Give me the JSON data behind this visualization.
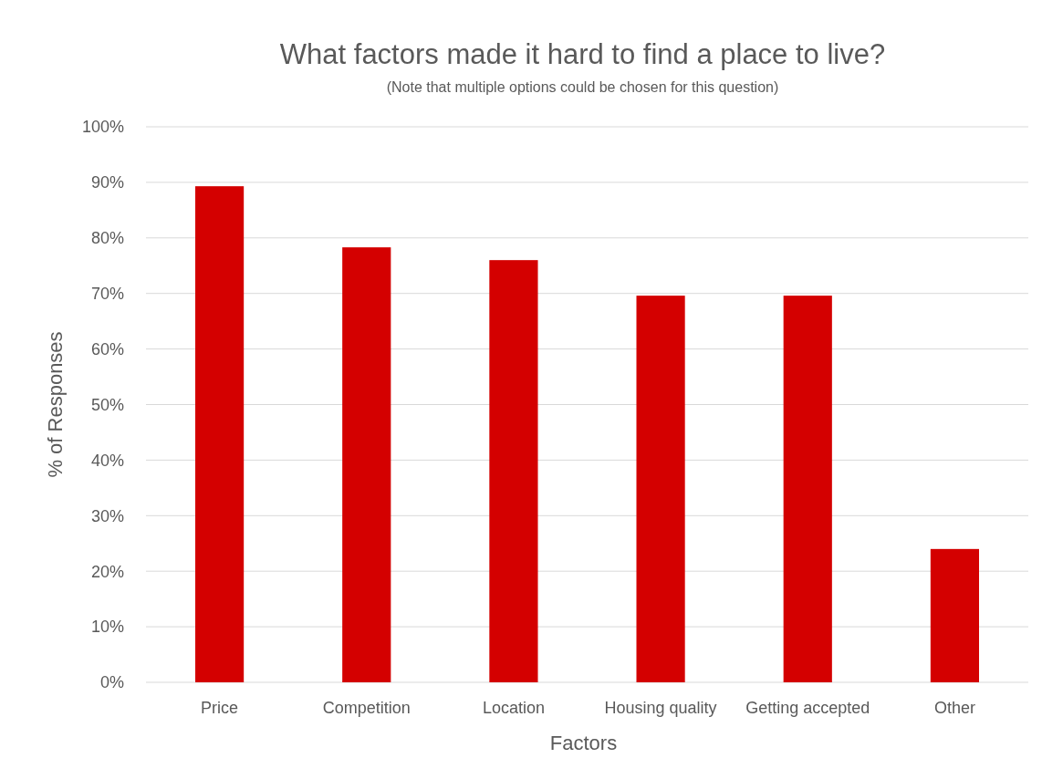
{
  "chart_data": {
    "type": "bar",
    "title": "What factors made it hard to find a place to live?",
    "subtitle": "(Note that multiple options could be chosen for this question)",
    "xlabel": "Factors",
    "ylabel": "% of Responses",
    "categories": [
      "Price",
      "Competition",
      "Location",
      "Housing quality",
      "Getting accepted",
      "Other"
    ],
    "values": [
      89.3,
      78.3,
      76,
      69.6,
      69.6,
      24
    ],
    "color": "#d40000",
    "ylim": [
      0,
      100
    ],
    "yticks": [
      {
        "value": 0,
        "label": "0%"
      },
      {
        "value": 10,
        "label": "10%"
      },
      {
        "value": 20,
        "label": "20%"
      },
      {
        "value": 30,
        "label": "30%"
      },
      {
        "value": 40,
        "label": "40%"
      },
      {
        "value": 50,
        "label": "50%"
      },
      {
        "value": 60,
        "label": "60%"
      },
      {
        "value": 70,
        "label": "70%"
      },
      {
        "value": 80,
        "label": "80%"
      },
      {
        "value": 90,
        "label": "90%"
      },
      {
        "value": 100,
        "label": "100%"
      }
    ],
    "grid": "y"
  }
}
